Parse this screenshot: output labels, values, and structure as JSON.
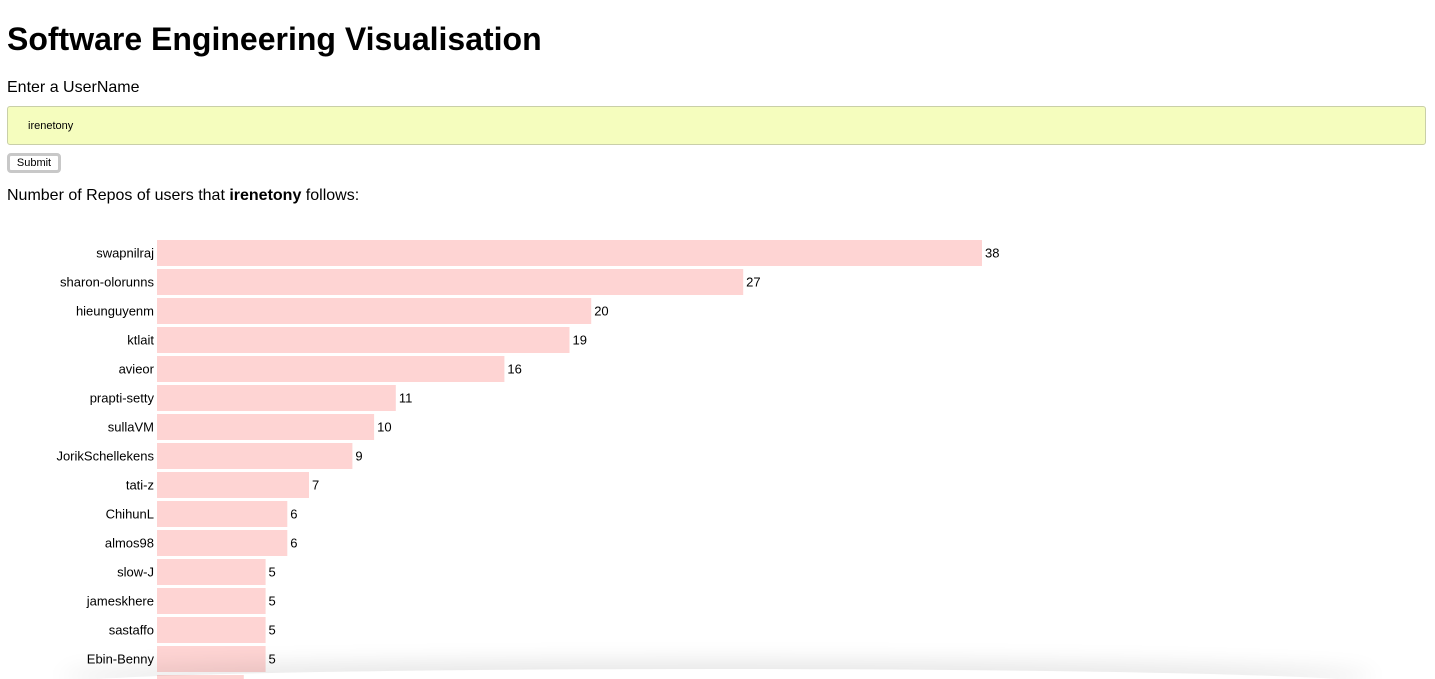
{
  "page": {
    "title": "Software Engineering Visualisation"
  },
  "form": {
    "label": "Enter a UserName",
    "username_value": "irenetony",
    "submit_label": "Submit"
  },
  "summary": {
    "prefix": "Number of Repos of users that ",
    "username": "irenetony",
    "suffix": " follows:"
  },
  "colors": {
    "bar": "#fed4d3",
    "input_background": "#f5fdbe"
  },
  "chart_data": {
    "type": "bar",
    "orientation": "horizontal",
    "title": "",
    "xlabel": "",
    "ylabel": "",
    "xlim": [
      0,
      38
    ],
    "grid": false,
    "categories": [
      "swapnilraj",
      "sharon-olorunns",
      "hieunguyenm",
      "ktlait",
      "avieor",
      "prapti-setty",
      "sullaVM",
      "JorikSchellekens",
      "tati-z",
      "ChihunL",
      "almos98",
      "slow-J",
      "jameskhere",
      "sastaffo",
      "Ebin-Benny",
      ""
    ],
    "values": [
      38,
      27,
      20,
      19,
      16,
      11,
      10,
      9,
      7,
      6,
      6,
      5,
      5,
      5,
      5,
      4
    ],
    "value_labels_shown": [
      true,
      true,
      true,
      true,
      true,
      true,
      true,
      true,
      true,
      true,
      true,
      true,
      true,
      true,
      true,
      false
    ]
  }
}
